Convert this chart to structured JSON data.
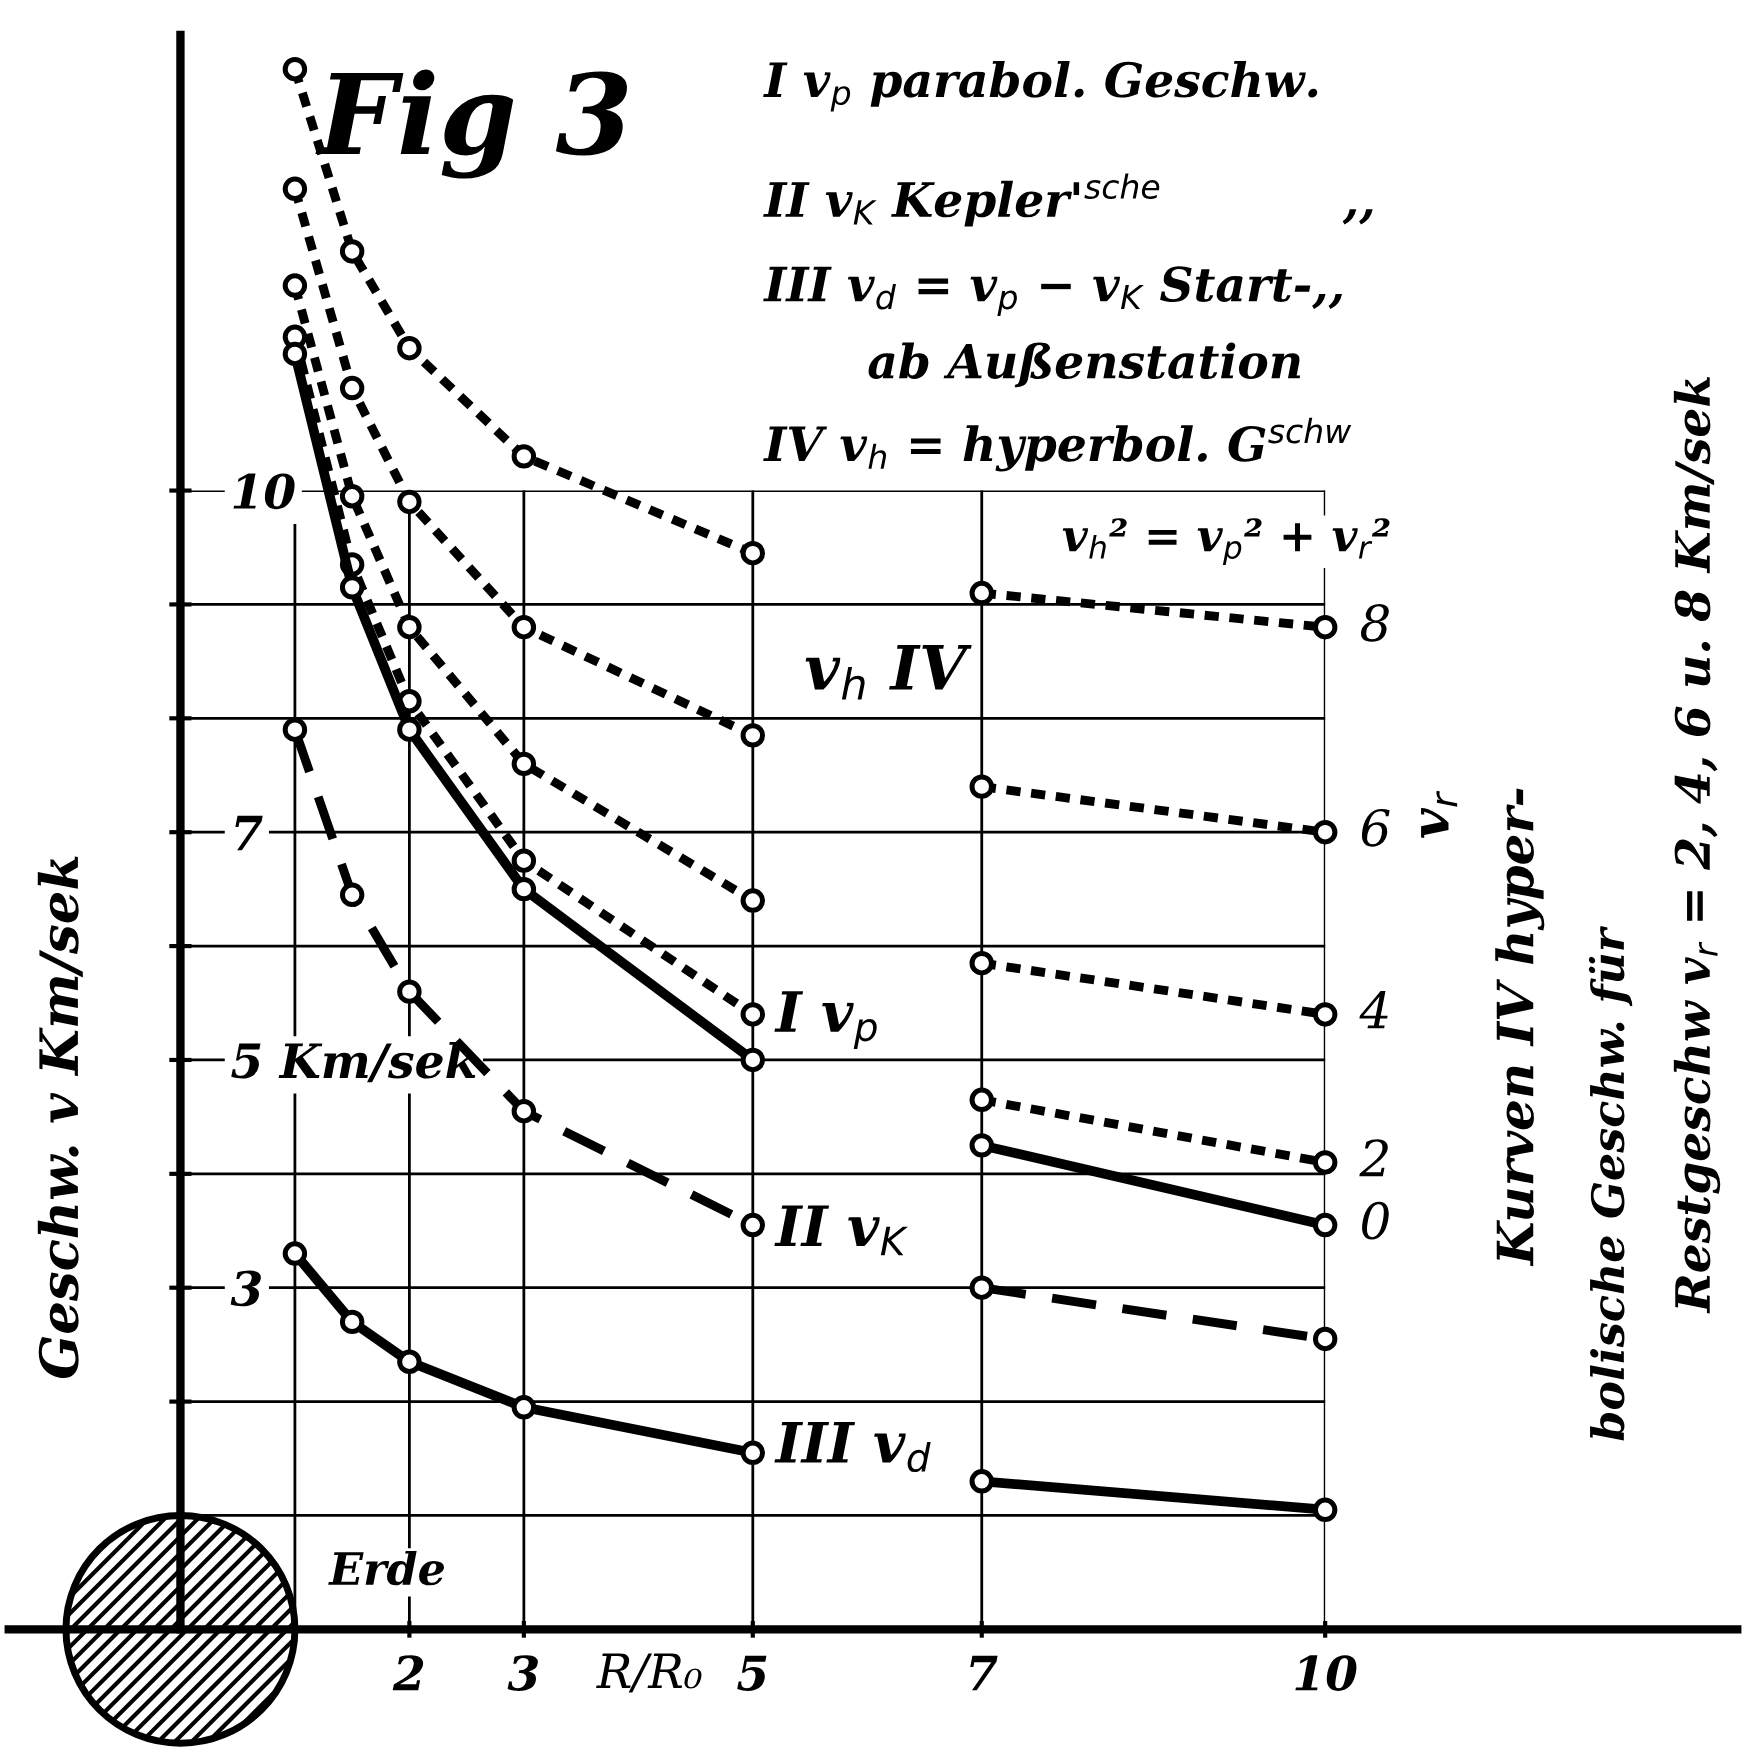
{
  "chart_data": {
    "type": "line",
    "title": "Fig 3",
    "xlabel": "R/R₀",
    "ylabel": "Geschw. v Km/sek",
    "xlim": [
      -1.5,
      13.6
    ],
    "ylim": [
      0,
      14
    ],
    "xticks": [
      {
        "value": 1,
        "label": null
      },
      2,
      3,
      5,
      7,
      10
    ],
    "yticks": [
      {
        "value": 1,
        "label": null
      },
      {
        "value": 2,
        "label": null
      },
      3,
      {
        "value": 4,
        "label": null
      },
      {
        "value": 5,
        "label": "5 Km/sek"
      },
      {
        "value": 6,
        "label": null
      },
      7,
      {
        "value": 8,
        "label": null
      },
      {
        "value": 9,
        "label": null
      },
      10
    ],
    "grid": true,
    "marker": "circle",
    "x": [
      1,
      1.5,
      2,
      3,
      5,
      6,
      7,
      10
    ],
    "series": [
      {
        "name": "8",
        "color": "#000000",
        "line_style": "dotted",
        "values": [
          13.7,
          12.1,
          11.25,
          10.3,
          9.45,
          null,
          9.1,
          8.8
        ]
      },
      {
        "name": "6",
        "color": "#000000",
        "line_style": "dotted",
        "values": [
          12.65,
          10.9,
          9.9,
          8.8,
          7.85,
          null,
          7.4,
          7.0
        ]
      },
      {
        "name": "4",
        "color": "#000000",
        "line_style": "dotted",
        "values": [
          11.8,
          9.95,
          8.8,
          7.6,
          6.4,
          null,
          5.85,
          5.4
        ]
      },
      {
        "name": "2",
        "color": "#000000",
        "line_style": "dotted",
        "values": [
          11.35,
          9.35,
          8.15,
          6.75,
          5.4,
          null,
          4.65,
          4.1
        ]
      },
      {
        "name": "I v$_{p}$",
        "color": "#000000",
        "line_style": "solid",
        "values": [
          11.2,
          9.15,
          7.9,
          6.5,
          5.0,
          null,
          4.25,
          3.55
        ]
      },
      {
        "name": "II v$_{K}$",
        "color": "#000000",
        "line_style": "dashed",
        "values": [
          7.9,
          6.45,
          5.6,
          4.55,
          3.55,
          null,
          3.0,
          2.55
        ]
      },
      {
        "name": "III v$_{d}$",
        "color": "#000000",
        "line_style": "solid",
        "values": [
          3.3,
          2.7,
          2.35,
          1.95,
          1.55,
          null,
          1.3,
          1.05
        ]
      }
    ],
    "annotations": [
      "I v$_{p}$ parabol. Geschw.",
      "II v$_{K}$ Kepler'$^{sche}$           ,,",
      "III v$_{d}$ = v$_{p}$ − v$_{K}$ Start-,,",
      "ab Außenstation",
      "IV v$_{h}$ = hyperbol. G$^{schw}$",
      "v$_{h}$² = v$_{p}$² + v$_{r}$²",
      "v$_{h}$ IV",
      "v$_{r}$",
      "Kurven IV hyper-",
      "bolische Geschw. für",
      "Restgeschw v$_{r}$ = 2, 4, 6 u. 8 Km/sek",
      "Erde",
      {
        "text": "0",
        "x": 10,
        "y": 3.55
      }
    ]
  }
}
